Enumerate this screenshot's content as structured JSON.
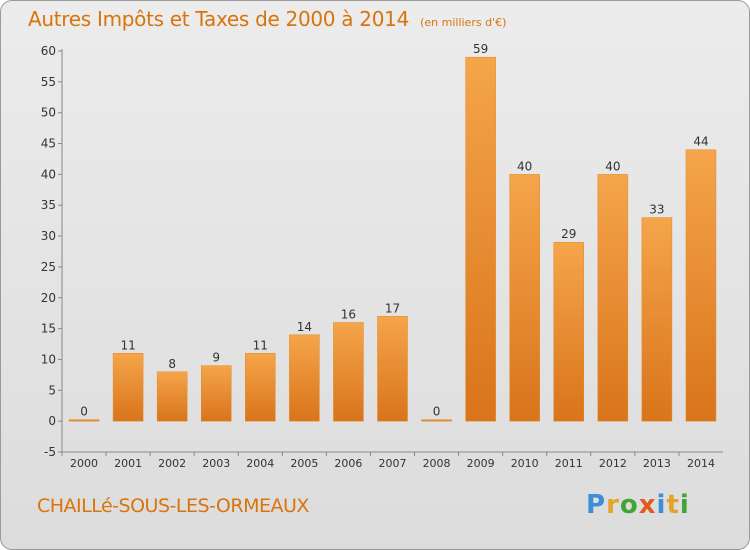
{
  "chart_data": {
    "type": "bar",
    "title": "Autres Impôts et Taxes de 2000 à 2014",
    "unit": "(en milliers d'€)",
    "categories": [
      "2000",
      "2001",
      "2002",
      "2003",
      "2004",
      "2005",
      "2006",
      "2007",
      "2008",
      "2009",
      "2010",
      "2011",
      "2012",
      "2013",
      "2014"
    ],
    "values": [
      0,
      11,
      8,
      9,
      11,
      14,
      16,
      17,
      0,
      59,
      40,
      29,
      40,
      33,
      44
    ],
    "data_labels": [
      "0",
      "11",
      "8",
      "9",
      "11",
      "14",
      "16",
      "17",
      "0",
      "59",
      "40",
      "29",
      "40",
      "33",
      "44"
    ],
    "y_ticks": [
      "-5",
      "0",
      "5",
      "10",
      "15",
      "20",
      "25",
      "30",
      "35",
      "40",
      "45",
      "50",
      "55",
      "60"
    ],
    "ylim": [
      -5,
      60
    ],
    "grid": false,
    "bar_color_light": "#f5a54a",
    "bar_color_dark": "#d9741b"
  },
  "footer": {
    "commune": "CHAILLé-SOUS-LES-ORMEAUX",
    "logo_letters": [
      "P",
      "r",
      "o",
      "x",
      "i",
      "t",
      "i"
    ],
    "logo_colors": [
      "#3a8fd6",
      "#e0a52a",
      "#3fa535",
      "#e05a1e",
      "#3a8fd6",
      "#e0a52a",
      "#3fa535"
    ]
  }
}
